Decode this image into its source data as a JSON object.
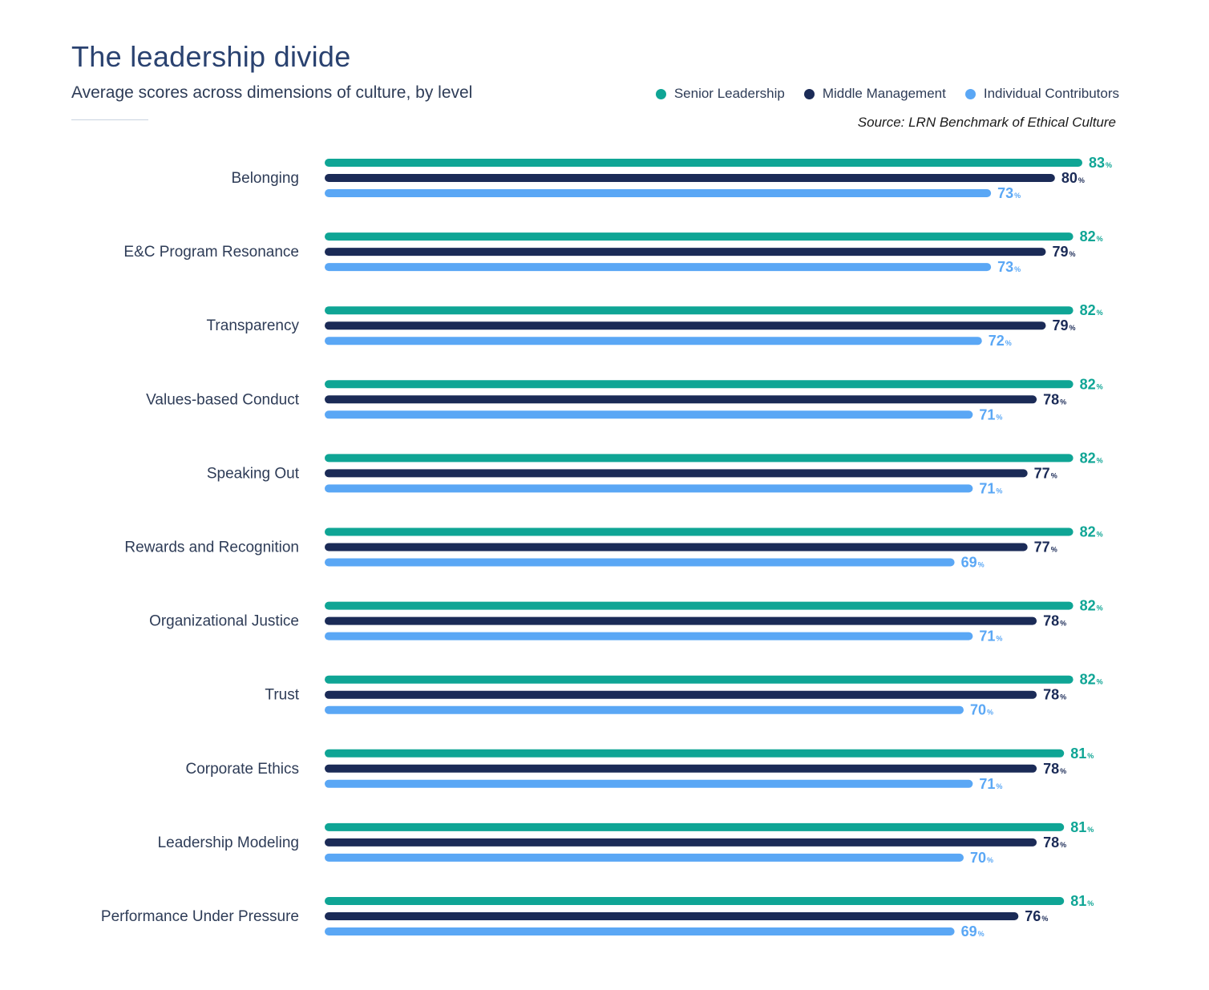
{
  "chart_data": {
    "type": "bar",
    "orientation": "horizontal",
    "title": "The leadership divide",
    "subtitle": "Average scores across dimensions of culture, by level",
    "source": "Source: LRN Benchmark of Ethical Culture",
    "unit_suffix": "%",
    "legend_position": "top-right",
    "grid": false,
    "xlim": [
      0,
      83
    ],
    "categories": [
      "Belonging",
      "E&C Program Resonance",
      "Transparency",
      "Values-based Conduct",
      "Speaking Out",
      "Rewards and Recognition",
      "Organizational Justice",
      "Trust",
      "Corporate Ethics",
      "Leadership Modeling",
      "Performance Under Pressure"
    ],
    "series": [
      {
        "name": "Senior Leadership",
        "color": "#0fa595",
        "values": [
          83,
          82,
          82,
          82,
          82,
          82,
          82,
          82,
          81,
          81,
          81
        ]
      },
      {
        "name": "Middle Management",
        "color": "#1b2b57",
        "values": [
          80,
          79,
          79,
          78,
          77,
          77,
          78,
          78,
          78,
          78,
          76
        ]
      },
      {
        "name": "Individual Contributors",
        "color": "#5aa7f5",
        "values": [
          73,
          73,
          72,
          71,
          71,
          69,
          71,
          70,
          71,
          70,
          69
        ]
      }
    ]
  }
}
